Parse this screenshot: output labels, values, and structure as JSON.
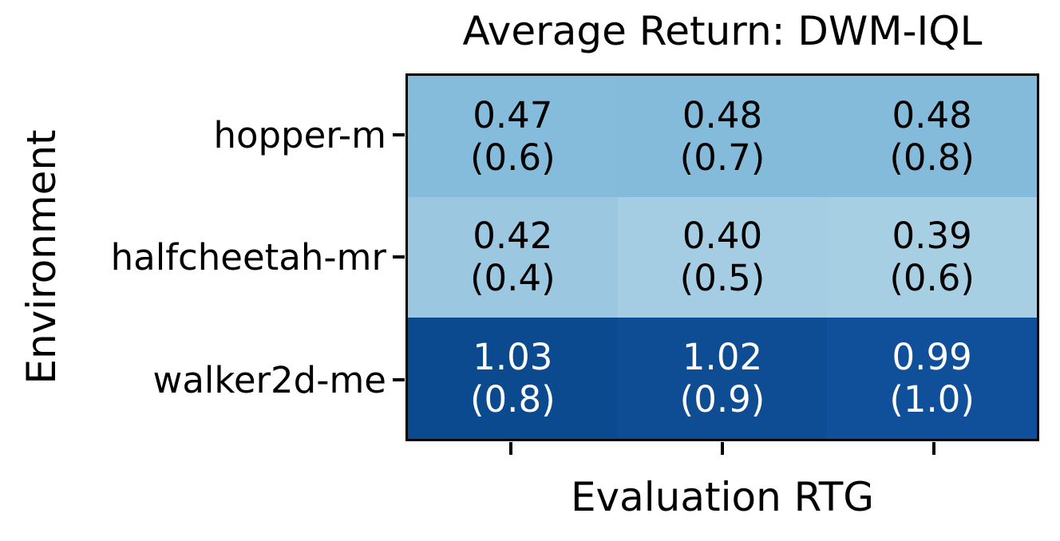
{
  "chart_data": {
    "type": "heatmap",
    "title": "Average Return: DWM-IQL",
    "xlabel": "Evaluation RTG",
    "ylabel": "Environment",
    "rows": [
      "hopper-m",
      "halfcheetah-mr",
      "walker2d-me"
    ],
    "x_tick_labels": [
      "",
      "",
      ""
    ],
    "colormap": "Blues",
    "values": [
      [
        0.47,
        0.48,
        0.48
      ],
      [
        0.42,
        0.4,
        0.39
      ],
      [
        1.03,
        1.02,
        0.99
      ]
    ],
    "rtg_values": [
      [
        0.6,
        0.7,
        0.8
      ],
      [
        0.4,
        0.5,
        0.6
      ],
      [
        0.8,
        0.9,
        1.0
      ]
    ],
    "grid": false,
    "legend": "none",
    "cells": [
      [
        {
          "value": "0.47",
          "rtg": "(0.6)",
          "bg": "#86bcdb",
          "fg": "#000000"
        },
        {
          "value": "0.48",
          "rtg": "(0.7)",
          "bg": "#84bbda",
          "fg": "#000000"
        },
        {
          "value": "0.48",
          "rtg": "(0.8)",
          "bg": "#84bbda",
          "fg": "#000000"
        }
      ],
      [
        {
          "value": "0.42",
          "rtg": "(0.4)",
          "bg": "#9bc8e0",
          "fg": "#000000"
        },
        {
          "value": "0.40",
          "rtg": "(0.5)",
          "bg": "#a4cde3",
          "fg": "#000000"
        },
        {
          "value": "0.39",
          "rtg": "(0.6)",
          "bg": "#a7cfe4",
          "fg": "#000000"
        }
      ],
      [
        {
          "value": "1.03",
          "rtg": "(0.8)",
          "bg": "#0c4a90",
          "fg": "#ffffff"
        },
        {
          "value": "1.02",
          "rtg": "(0.9)",
          "bg": "#0e4c93",
          "fg": "#ffffff"
        },
        {
          "value": "0.99",
          "rtg": "(1.0)",
          "bg": "#10509b",
          "fg": "#ffffff"
        }
      ]
    ],
    "colors": {
      "border": "#000000",
      "background": "#ffffff",
      "title_text": "#000000"
    }
  }
}
